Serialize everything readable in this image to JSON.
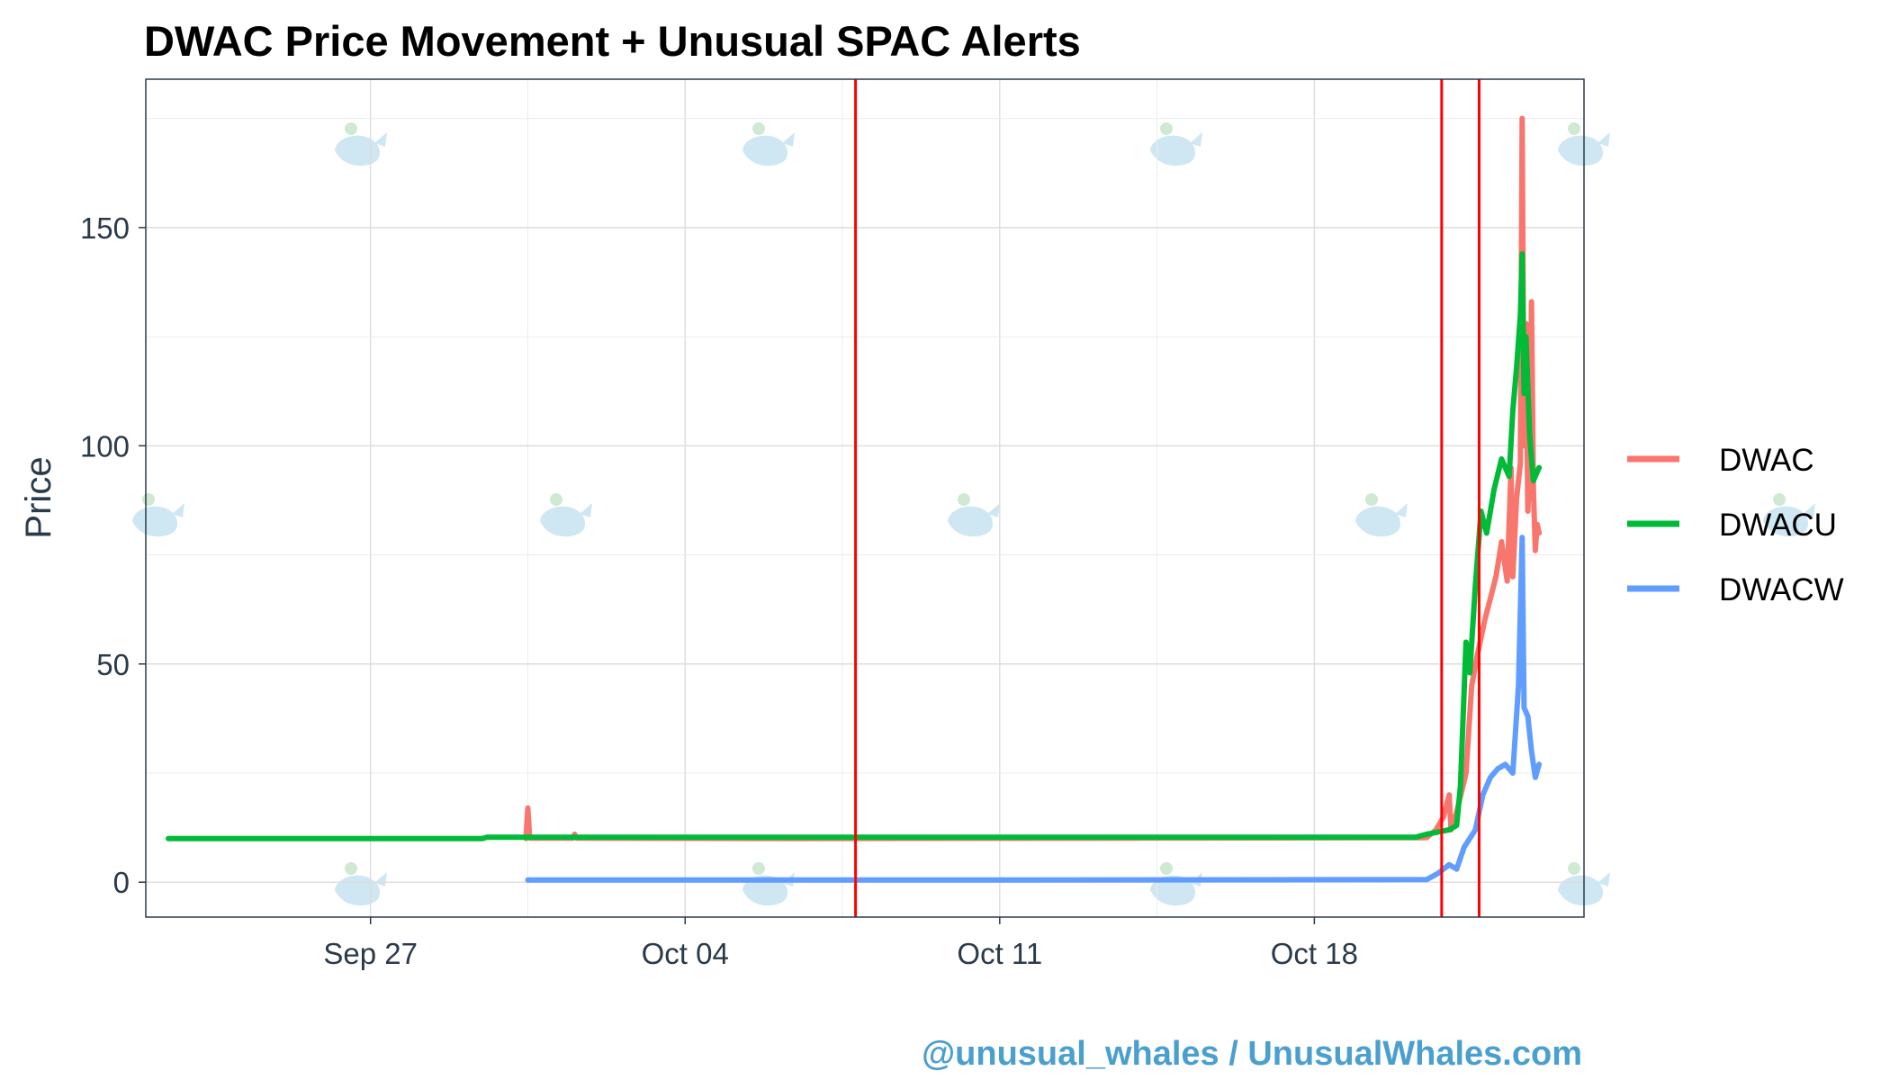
{
  "chart_data": {
    "type": "line",
    "title": "DWAC Price Movement + Unusual SPAC Alerts",
    "xlabel": "",
    "ylabel": "Price",
    "x_ticks": [
      "Sep 27",
      "Oct 04",
      "Oct 11",
      "Oct 18"
    ],
    "x_tick_dates": [
      "2021-09-27",
      "2021-10-04",
      "2021-10-11",
      "2021-10-18"
    ],
    "xlim": [
      "2021-09-22",
      "2021-10-24"
    ],
    "y_ticks": [
      0,
      50,
      100,
      150
    ],
    "ylim": [
      -8,
      184
    ],
    "grid": true,
    "legend_position": "right",
    "alert_lines": [
      "2021-10-07 19:00",
      "2021-10-20 20:00",
      "2021-10-21 16:00"
    ],
    "series": [
      {
        "name": "DWAC",
        "color": "#f8766d",
        "points": [
          [
            "2021-09-30 11:00",
            10.0
          ],
          [
            "2021-09-30 12:00",
            17.0
          ],
          [
            "2021-09-30 13:00",
            10.1
          ],
          [
            "2021-10-01 12:00",
            10.1
          ],
          [
            "2021-10-01 13:00",
            11.0
          ],
          [
            "2021-10-01 14:00",
            10.1
          ],
          [
            "2021-10-06 12:00",
            10.0
          ],
          [
            "2021-10-14 00:00",
            10.1
          ],
          [
            "2021-10-20 12:00",
            10.2
          ],
          [
            "2021-10-20 17:00",
            12.0
          ],
          [
            "2021-10-20 21:00",
            15.0
          ],
          [
            "2021-10-21 00:00",
            20.0
          ],
          [
            "2021-10-21 01:00",
            12.0
          ],
          [
            "2021-10-21 04:00",
            16.0
          ],
          [
            "2021-10-21 09:00",
            25.0
          ],
          [
            "2021-10-21 12:00",
            45.0
          ],
          [
            "2021-10-21 15:00",
            52.0
          ],
          [
            "2021-10-21 19:00",
            60.0
          ],
          [
            "2021-10-22 01:00",
            70.0
          ],
          [
            "2021-10-22 04:00",
            78.0
          ],
          [
            "2021-10-22 07:00",
            69.0
          ],
          [
            "2021-10-22 09:00",
            95.0
          ],
          [
            "2021-10-22 10:00",
            70.0
          ],
          [
            "2021-10-22 12:00",
            88.0
          ],
          [
            "2021-10-22 14:00",
            96.0
          ],
          [
            "2021-10-22 15:00",
            175.0
          ],
          [
            "2021-10-22 16:00",
            100.0
          ],
          [
            "2021-10-22 17:00",
            128.0
          ],
          [
            "2021-10-22 18:00",
            85.0
          ],
          [
            "2021-10-22 19:00",
            95.0
          ],
          [
            "2021-10-22 20:00",
            133.0
          ],
          [
            "2021-10-22 21:00",
            90.0
          ],
          [
            "2021-10-22 22:00",
            76.0
          ],
          [
            "2021-10-22 23:00",
            82.0
          ],
          [
            "2021-10-23 00:00",
            80.0
          ]
        ]
      },
      {
        "name": "DWACU",
        "color": "#00ba38",
        "points": [
          [
            "2021-09-22 12:00",
            10.0
          ],
          [
            "2021-09-28 00:00",
            10.0
          ],
          [
            "2021-09-29 12:00",
            10.0
          ],
          [
            "2021-09-29 14:00",
            10.3
          ],
          [
            "2021-10-10 00:00",
            10.3
          ],
          [
            "2021-10-20 06:00",
            10.3
          ],
          [
            "2021-10-20 12:00",
            11.0
          ],
          [
            "2021-10-21 00:00",
            12.0
          ],
          [
            "2021-10-21 04:00",
            13.0
          ],
          [
            "2021-10-21 06:00",
            22.0
          ],
          [
            "2021-10-21 09:00",
            55.0
          ],
          [
            "2021-10-21 11:00",
            48.0
          ],
          [
            "2021-10-21 14:00",
            68.0
          ],
          [
            "2021-10-21 17:00",
            85.0
          ],
          [
            "2021-10-21 20:00",
            80.0
          ],
          [
            "2021-10-22 00:00",
            90.0
          ],
          [
            "2021-10-22 04:00",
            97.0
          ],
          [
            "2021-10-22 08:00",
            93.0
          ],
          [
            "2021-10-22 10:00",
            108.0
          ],
          [
            "2021-10-22 12:00",
            118.0
          ],
          [
            "2021-10-22 14:00",
            130.0
          ],
          [
            "2021-10-22 15:00",
            144.0
          ],
          [
            "2021-10-22 16:00",
            112.0
          ],
          [
            "2021-10-22 17:00",
            125.0
          ],
          [
            "2021-10-22 19:00",
            102.0
          ],
          [
            "2021-10-22 21:00",
            92.0
          ],
          [
            "2021-10-23 00:00",
            95.0
          ]
        ]
      },
      {
        "name": "DWACW",
        "color": "#619cff",
        "points": [
          [
            "2021-09-30 12:00",
            0.5
          ],
          [
            "2021-10-10 00:00",
            0.5
          ],
          [
            "2021-10-20 12:00",
            0.6
          ],
          [
            "2021-10-20 18:00",
            2.0
          ],
          [
            "2021-10-21 00:00",
            4.0
          ],
          [
            "2021-10-21 04:00",
            3.0
          ],
          [
            "2021-10-21 08:00",
            8.0
          ],
          [
            "2021-10-21 14:00",
            12.0
          ],
          [
            "2021-10-21 18:00",
            20.0
          ],
          [
            "2021-10-21 22:00",
            24.0
          ],
          [
            "2021-10-22 02:00",
            26.0
          ],
          [
            "2021-10-22 06:00",
            27.0
          ],
          [
            "2021-10-22 10:00",
            25.0
          ],
          [
            "2021-10-22 13:00",
            45.0
          ],
          [
            "2021-10-22 15:00",
            79.0
          ],
          [
            "2021-10-22 16:00",
            40.0
          ],
          [
            "2021-10-22 18:00",
            38.0
          ],
          [
            "2021-10-22 20:00",
            30.0
          ],
          [
            "2021-10-22 22:00",
            24.0
          ],
          [
            "2021-10-23 00:00",
            27.0
          ]
        ]
      }
    ]
  },
  "footer": {
    "credit": "@unusual_whales / UnusualWhales.com"
  }
}
